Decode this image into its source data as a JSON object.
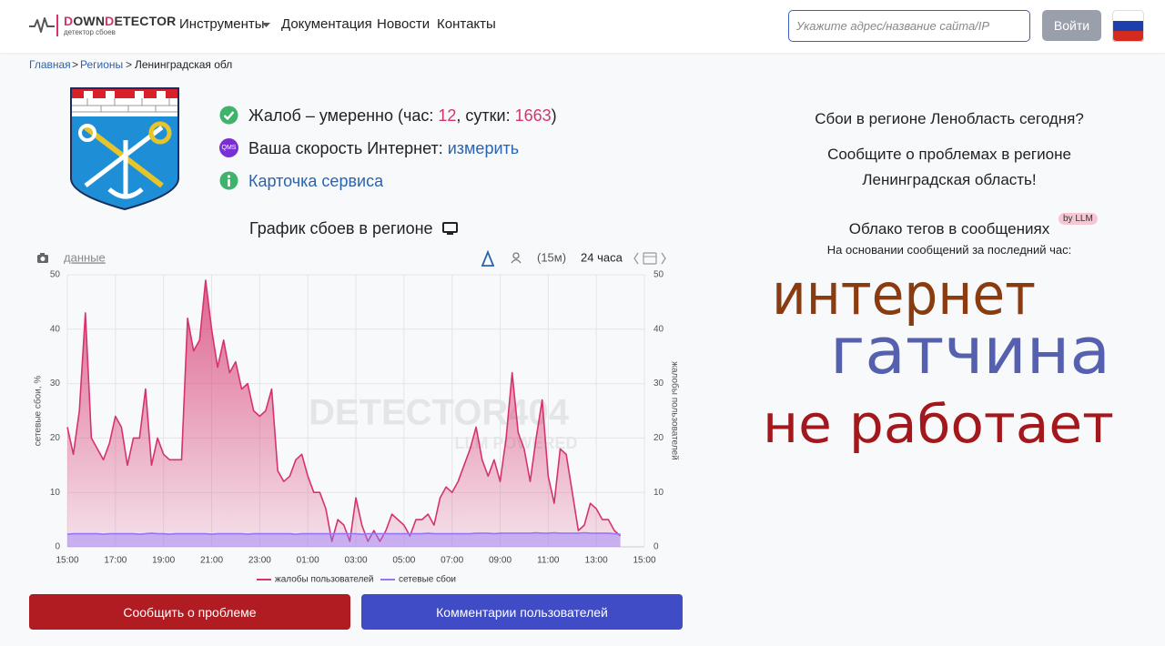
{
  "header": {
    "logo": [
      "D",
      "OWN",
      "D",
      "ETECTOR"
    ],
    "logo_subtitle": "детектор сбоев",
    "nav": [
      "Инструменты",
      "Документация",
      "Новости",
      "Контакты"
    ],
    "search_placeholder": "Укажите адрес/название сайта/IP",
    "login": "Войти"
  },
  "breadcrumb": {
    "items": [
      "Главная",
      "Регионы",
      "Ленинградская обл"
    ],
    "separator": ">"
  },
  "status": {
    "complaints": [
      "Жалоб – умеренно (час: ",
      12,
      ", сутки: ",
      1663,
      ")"
    ],
    "speed_icon": "QMS",
    "speed": "Ваша скорость Интернет: ",
    "speed_link": "измерить",
    "service_card": "Карточка сервиса"
  },
  "chart_data": {
    "type": "area",
    "title": "График сбоев в регионе",
    "toolbar": {
      "data_link": "данные",
      "interval": "(15м)",
      "range": "24 часа"
    },
    "watermark": [
      "DETECTOR404",
      "LLM POWERED"
    ],
    "ylabel": "сетевые сбои, %",
    "y2label": "жалобы пользователей",
    "x": [
      "15:00",
      "15:15",
      "15:30",
      "15:45",
      "16:00",
      "16:15",
      "16:30",
      "16:45",
      "17:00",
      "17:15",
      "17:30",
      "17:45",
      "18:00",
      "18:15",
      "18:30",
      "18:45",
      "19:00",
      "19:15",
      "19:30",
      "19:45",
      "20:00",
      "20:15",
      "20:30",
      "20:45",
      "21:00",
      "21:15",
      "21:30",
      "21:45",
      "22:00",
      "22:15",
      "22:30",
      "22:45",
      "23:00",
      "23:15",
      "23:30",
      "23:45",
      "00:00",
      "00:15",
      "00:30",
      "00:45",
      "01:00",
      "01:15",
      "01:30",
      "01:45",
      "02:00",
      "02:15",
      "02:30",
      "02:45",
      "03:00",
      "03:15",
      "03:30",
      "03:45",
      "04:00",
      "04:15",
      "04:30",
      "04:45",
      "05:00",
      "05:15",
      "05:30",
      "05:45",
      "06:00",
      "06:15",
      "06:30",
      "06:45",
      "07:00",
      "07:15",
      "07:30",
      "07:45",
      "08:00",
      "08:15",
      "08:30",
      "08:45",
      "09:00",
      "09:15",
      "09:30",
      "09:45",
      "10:00",
      "10:15",
      "10:30",
      "10:45",
      "11:00",
      "11:15",
      "11:30",
      "11:45",
      "12:00",
      "12:15",
      "12:30",
      "12:45",
      "13:00",
      "13:15",
      "13:30",
      "13:45",
      "14:00"
    ],
    "xticks": [
      "15:00",
      "17:00",
      "19:00",
      "21:00",
      "23:00",
      "01:00",
      "03:00",
      "05:00",
      "07:00",
      "09:00",
      "11:00",
      "13:00",
      "15:00"
    ],
    "series": [
      {
        "name": "жалобы пользователей",
        "color": "#d6336c",
        "axis": "y2",
        "values": [
          22,
          17,
          25,
          43,
          20,
          18,
          16,
          19,
          24,
          22,
          15,
          20,
          20,
          29,
          15,
          20,
          17,
          16,
          16,
          16,
          42,
          36,
          38,
          49,
          40,
          33,
          38,
          32,
          34,
          29,
          30,
          25,
          24,
          25,
          29,
          14,
          12,
          13,
          16,
          17,
          13,
          10,
          10,
          7,
          1,
          5,
          4,
          1,
          9,
          4,
          1,
          3,
          1,
          3,
          6,
          5,
          4,
          2,
          5,
          5,
          6,
          4,
          9,
          11,
          10,
          12,
          15,
          18,
          22,
          16,
          13,
          16,
          12,
          20,
          32,
          21,
          18,
          12,
          20,
          27,
          13,
          8,
          18,
          17,
          10,
          3,
          4,
          8,
          7,
          5,
          5,
          3,
          2
        ]
      },
      {
        "name": "сетевые сбои",
        "color": "#9775fa",
        "values": [
          2.3,
          2.4,
          2.4,
          2.4,
          2.4,
          2.4,
          2.3,
          2.4,
          2.4,
          2.4,
          2.4,
          2.4,
          2.3,
          2.4,
          2.5,
          2.4,
          2.4,
          2.3,
          2.4,
          2.4,
          2.4,
          2.4,
          2.4,
          2.4,
          2.3,
          2.4,
          2.4,
          2.4,
          2.4,
          2.4,
          2.3,
          2.4,
          2.4,
          2.4,
          2.4,
          2.4,
          2.4,
          2.4,
          2.3,
          2.4,
          2.4,
          2.4,
          2.4,
          2.4,
          2.4,
          2.4,
          2.4,
          2.4,
          2.4,
          2.3,
          2.4,
          2.4,
          2.4,
          2.4,
          2.4,
          2.4,
          2.4,
          2.4,
          2.4,
          2.4,
          2.5,
          2.4,
          2.4,
          2.4,
          2.4,
          2.4,
          2.4,
          2.4,
          2.5,
          2.5,
          2.5,
          2.4,
          2.5,
          2.5,
          2.5,
          2.5,
          2.5,
          2.5,
          2.6,
          2.5,
          2.5,
          2.6,
          2.5,
          2.5,
          2.5,
          2.5,
          2.6,
          2.5,
          2.5,
          2.5,
          2.5,
          2.4,
          2.3
        ]
      }
    ],
    "ylim": [
      0,
      50
    ],
    "yticks": [
      0,
      10,
      20,
      30,
      40,
      50
    ],
    "y2lim": [
      0,
      50
    ],
    "y2ticks": [
      0,
      10,
      20,
      30,
      40,
      50
    ],
    "grid": true,
    "legend": "bottom"
  },
  "sidebar": {
    "question": "Сбои в регионе Ленобласть сегодня?",
    "report_prompt": "Сообщите о проблемах в регионе Ленинградская область!",
    "cloud_title": "Облако тегов в сообщениях",
    "cloud_badge": "by LLM",
    "cloud_subtitle": "На основании сообщений за последний час:",
    "tags": [
      {
        "text": "интернет",
        "color": "#8a3b0f"
      },
      {
        "text": "гатчина",
        "color": "#5560ae"
      },
      {
        "text": "не работает",
        "color": "#a3181c"
      }
    ]
  },
  "buttons": [
    "Сообщить о проблеме",
    "Комментарии пользователей"
  ]
}
